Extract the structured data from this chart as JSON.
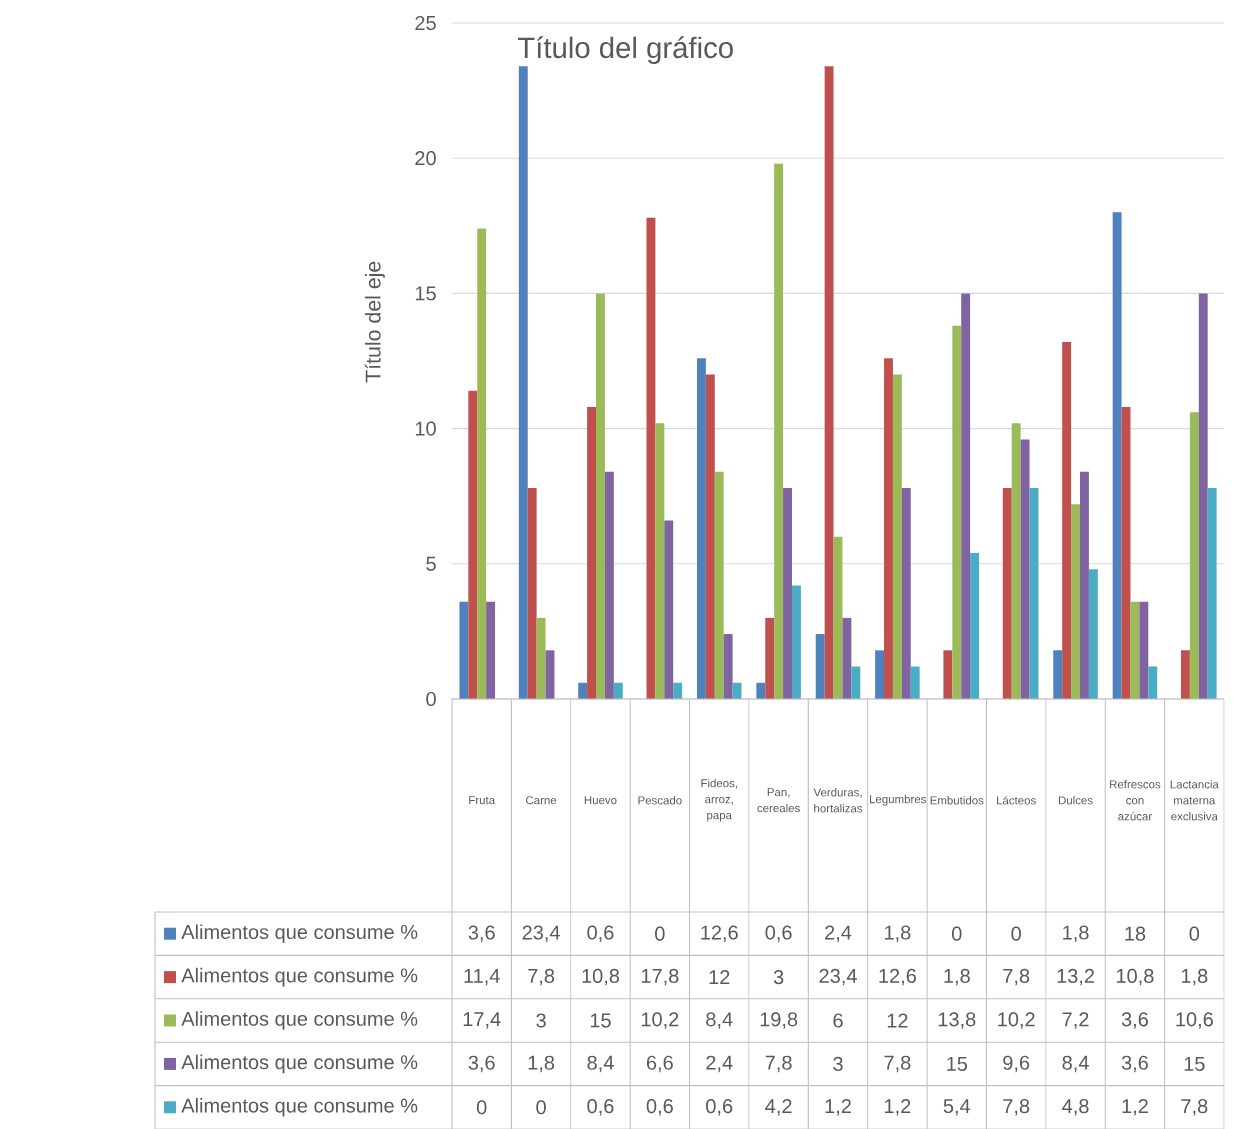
{
  "chart_data": {
    "type": "bar",
    "title": "Título del gráfico",
    "ylabel": "Título del eje",
    "categories": [
      "Fruta",
      "Carne",
      "Huevo",
      "Pescado",
      "Fideos, arroz, papa",
      "Pan, cereales",
      "Verduras, hortalizas",
      "Legumbres",
      "Embutidos",
      "Lácteos",
      "Dulces",
      "Refrescos con azúcar",
      "Lactancia materna exclusiva"
    ],
    "series": [
      {
        "name": "Alimentos que consume %",
        "color": "#4f81bd",
        "values": [
          3.6,
          23.4,
          0.6,
          0,
          12.6,
          0.6,
          2.4,
          1.8,
          0,
          0,
          1.8,
          18,
          0
        ],
        "value_labels": [
          "3,6",
          "23,4",
          "0,6",
          "0",
          "12,6",
          "0,6",
          "2,4",
          "1,8",
          "0",
          "0",
          "1,8",
          "18",
          "0"
        ]
      },
      {
        "name": "Alimentos que consume %",
        "color": "#c0504d",
        "values": [
          11.4,
          7.8,
          10.8,
          17.8,
          12,
          3,
          23.4,
          12.6,
          1.8,
          7.8,
          13.2,
          10.8,
          1.8
        ],
        "value_labels": [
          "11,4",
          "7,8",
          "10,8",
          "17,8",
          "12",
          "3",
          "23,4",
          "12,6",
          "1,8",
          "7,8",
          "13,2",
          "10,8",
          "1,8"
        ]
      },
      {
        "name": "Alimentos que consume %",
        "color": "#9bbb59",
        "values": [
          17.4,
          3,
          15,
          10.2,
          8.4,
          19.8,
          6,
          12,
          13.8,
          10.2,
          7.2,
          3.6,
          10.6
        ],
        "value_labels": [
          "17,4",
          "3",
          "15",
          "10,2",
          "8,4",
          "19,8",
          "6",
          "12",
          "13,8",
          "10,2",
          "7,2",
          "3,6",
          "10,6"
        ]
      },
      {
        "name": "Alimentos que consume %",
        "color": "#8064a2",
        "values": [
          3.6,
          1.8,
          8.4,
          6.6,
          2.4,
          7.8,
          3,
          7.8,
          15,
          9.6,
          8.4,
          3.6,
          15
        ],
        "value_labels": [
          "3,6",
          "1,8",
          "8,4",
          "6,6",
          "2,4",
          "7,8",
          "3",
          "7,8",
          "15",
          "9,6",
          "8,4",
          "3,6",
          "15"
        ]
      },
      {
        "name": "Alimentos que consume %",
        "color": "#4bacc6",
        "values": [
          0,
          0,
          0.6,
          0.6,
          0.6,
          4.2,
          1.2,
          1.2,
          5.4,
          7.8,
          4.8,
          1.2,
          7.8
        ],
        "value_labels": [
          "0",
          "0",
          "0,6",
          "0,6",
          "0,6",
          "4,2",
          "1,2",
          "1,2",
          "5,4",
          "7,8",
          "4,8",
          "1,2",
          "7,8"
        ]
      }
    ],
    "ylim": [
      0,
      25
    ],
    "yticks": [
      0,
      5,
      10,
      15,
      20,
      25
    ],
    "grid": "y"
  }
}
